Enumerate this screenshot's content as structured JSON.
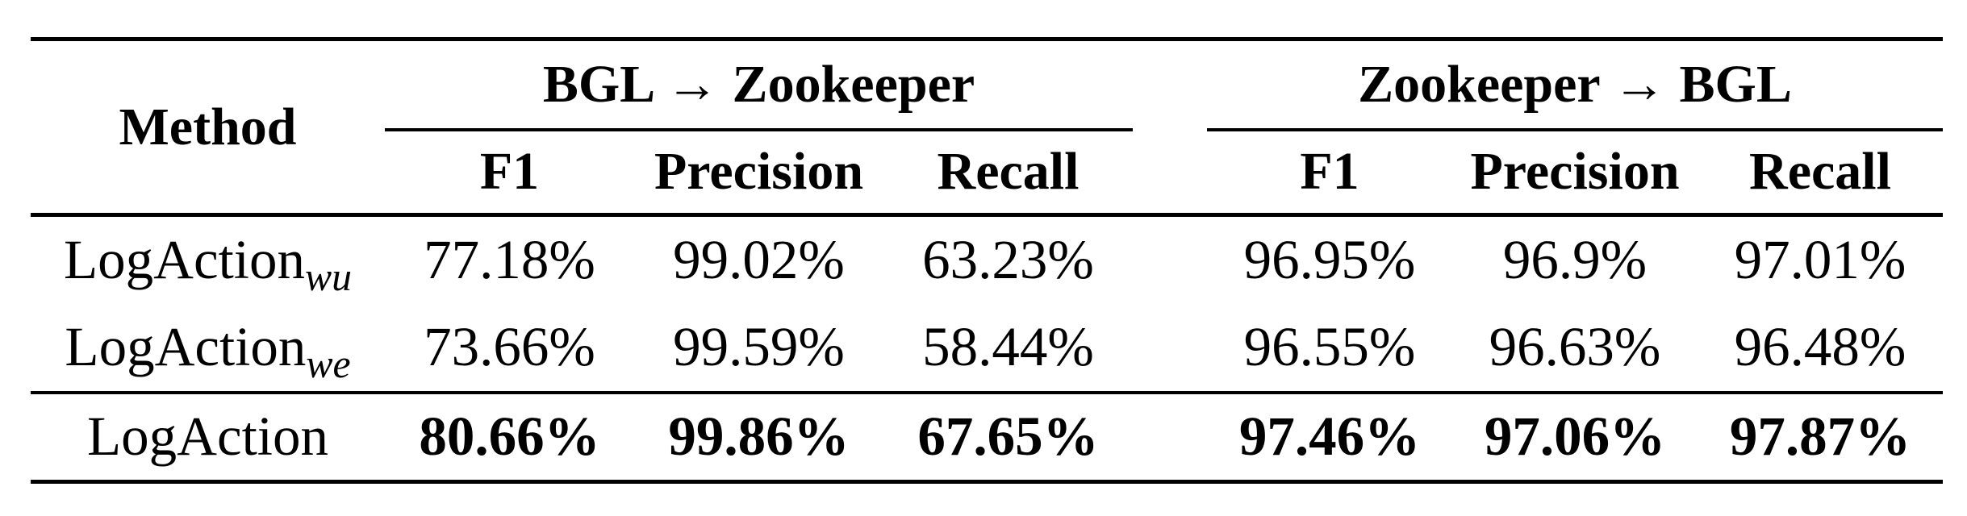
{
  "table": {
    "header": {
      "method_label": "Method",
      "groups": [
        {
          "label": "BGL → Zookeeper",
          "metrics": [
            "F1",
            "Precision",
            "Recall"
          ]
        },
        {
          "label": "Zookeeper → BGL",
          "metrics": [
            "F1",
            "Precision",
            "Recall"
          ]
        }
      ]
    },
    "rows": [
      {
        "method_base": "LogAction",
        "method_sub": "wu",
        "emphasis": false,
        "values": [
          "77.18%",
          "99.02%",
          "63.23%",
          "96.95%",
          "96.9%",
          "97.01%"
        ]
      },
      {
        "method_base": "LogAction",
        "method_sub": "we",
        "emphasis": false,
        "values": [
          "73.66%",
          "99.59%",
          "58.44%",
          "96.55%",
          "96.63%",
          "96.48%"
        ]
      },
      {
        "method_base": "LogAction",
        "method_sub": "",
        "emphasis": true,
        "values": [
          "80.66%",
          "99.86%",
          "67.65%",
          "97.46%",
          "97.06%",
          "97.87%"
        ]
      }
    ],
    "colors": {
      "text": "#000000",
      "rule": "#000000",
      "background": "#ffffff"
    }
  }
}
